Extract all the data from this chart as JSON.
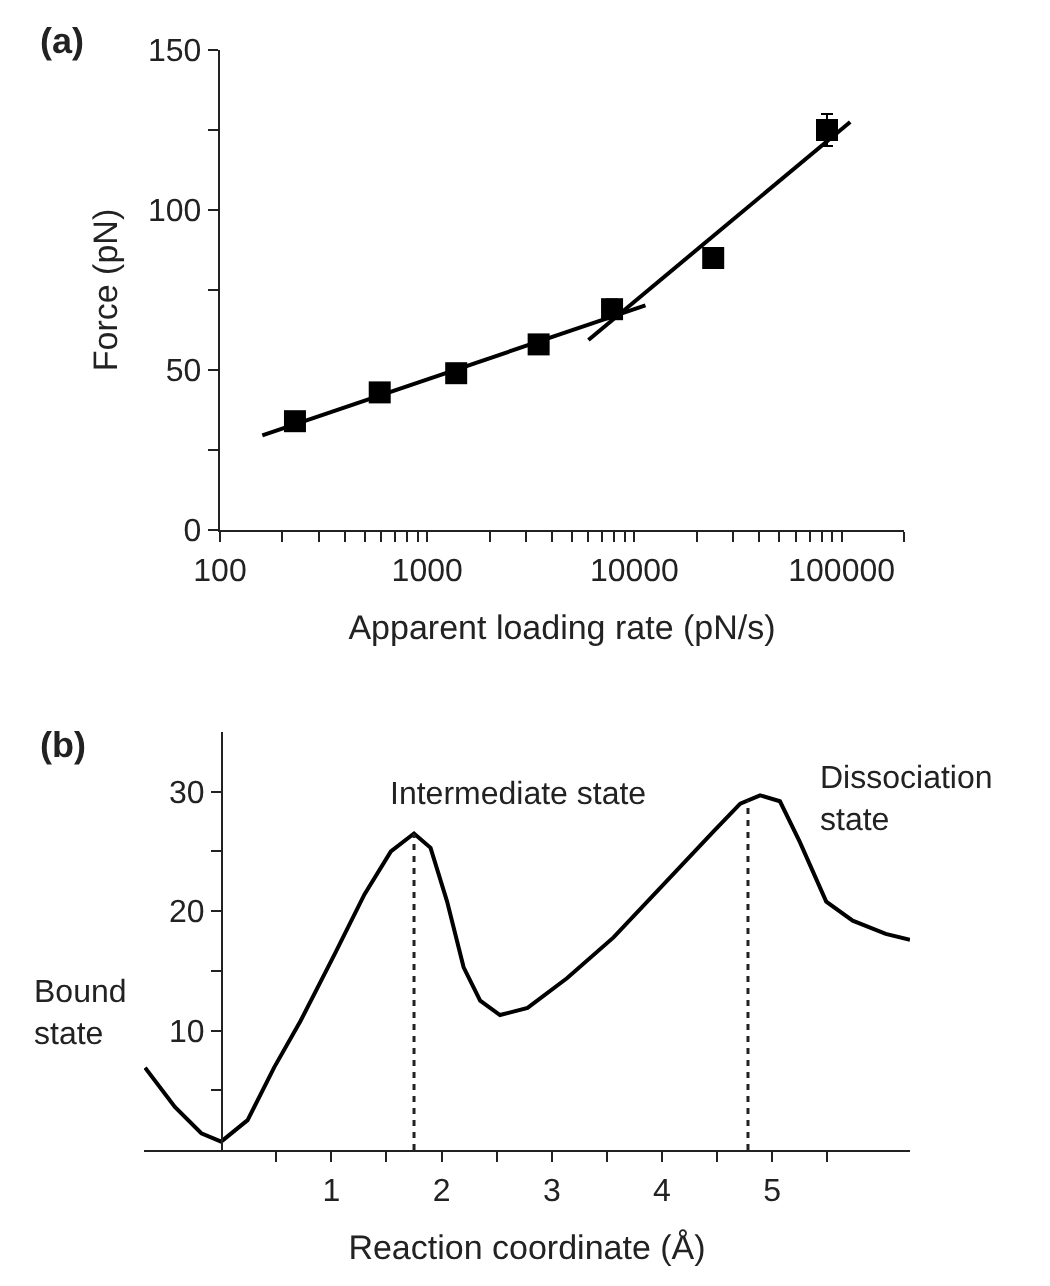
{
  "chart_data": [
    {
      "type": "scatter",
      "title": "(a)",
      "xlabel": "Apparent loading rate (pN/s)",
      "ylabel": "Force (pN)",
      "log": "x",
      "x": [
        230,
        590,
        1380,
        3450,
        7800,
        24000,
        85000
      ],
      "series": [
        {
          "color": "#000000",
          "marker": "square",
          "values": [
            34,
            43,
            49,
            58,
            69,
            85,
            125
          ],
          "errors": [
            null,
            null,
            null,
            null,
            3,
            null,
            5
          ]
        },
        {
          "type": "line",
          "marker": "none",
          "color": "#000000",
          "x": [
            160,
            11300
          ],
          "values": [
            29.6,
            70.2
          ]
        },
        {
          "type": "line",
          "marker": "none",
          "color": "#000000",
          "x": [
            6000,
            110000
          ],
          "values": [
            59.4,
            127.5
          ]
        }
      ],
      "xlim": [
        100,
        200000
      ],
      "ylim": [
        0,
        150
      ],
      "xticks": [
        100,
        {
          "value": 200,
          "label": null
        },
        {
          "value": 300,
          "label": null
        },
        {
          "value": 400,
          "label": null
        },
        {
          "value": 500,
          "label": null
        },
        {
          "value": 600,
          "label": null
        },
        {
          "value": 700,
          "label": null
        },
        {
          "value": 800,
          "label": null
        },
        {
          "value": 900,
          "label": null
        },
        1000,
        {
          "value": 2000,
          "label": null
        },
        {
          "value": 3000,
          "label": null
        },
        {
          "value": 4000,
          "label": null
        },
        {
          "value": 5000,
          "label": null
        },
        {
          "value": 6000,
          "label": null
        },
        {
          "value": 7000,
          "label": null
        },
        {
          "value": 8000,
          "label": null
        },
        {
          "value": 9000,
          "label": null
        },
        10000,
        {
          "value": 20000,
          "label": null
        },
        {
          "value": 30000,
          "label": null
        },
        {
          "value": 40000,
          "label": null
        },
        {
          "value": 50000,
          "label": null
        },
        {
          "value": 60000,
          "label": null
        },
        {
          "value": 70000,
          "label": null
        },
        {
          "value": 80000,
          "label": null
        },
        {
          "value": 90000,
          "label": null
        },
        100000,
        {
          "value": 200000,
          "label": null
        }
      ],
      "yticks": [
        0,
        {
          "value": 25,
          "label": null
        },
        50,
        {
          "value": 75,
          "label": null
        },
        100,
        {
          "value": 125,
          "label": null
        },
        150
      ]
    },
    {
      "type": "line",
      "title": "(b)",
      "xlabel": "Reaction coordinate (Å)",
      "marker": "none",
      "x": [
        -0.69,
        -0.42,
        -0.18,
        0,
        0.24,
        0.48,
        0.72,
        1.03,
        1.3,
        1.54,
        1.75,
        1.9,
        2.05,
        2.2,
        2.35,
        2.53,
        2.78,
        3.14,
        3.56,
        4.04,
        4.47,
        4.71,
        4.89,
        5.07,
        5.25,
        5.49,
        5.73,
        6.03,
        6.25
      ],
      "values": [
        6.9,
        3.6,
        1.4,
        0.7,
        2.5,
        6.9,
        10.8,
        16.4,
        21.4,
        25,
        26.5,
        25.3,
        20.8,
        15.3,
        12.5,
        11.3,
        11.9,
        14.4,
        17.8,
        22.5,
        26.7,
        29,
        29.7,
        29.2,
        25.8,
        20.8,
        19.2,
        18.1,
        17.6
      ],
      "color": "#000000",
      "ref_lines": [
        {
          "axis": "x",
          "value": 1.75,
          "line_style": "dotted"
        },
        {
          "axis": "x",
          "value": 4.78,
          "line_style": "dotted"
        }
      ],
      "annotations": [
        "Bound state",
        {
          "text": "Intermediate state",
          "x": 1.75,
          "y": 26.5
        },
        {
          "text": "Dissociation state",
          "x": 4.89,
          "y": 29.7
        }
      ],
      "xlim": [
        -0.7,
        6.25
      ],
      "ylim": [
        0,
        35
      ],
      "xticks": [
        {
          "value": 0.5,
          "label": null
        },
        1,
        {
          "value": 1.5,
          "label": null
        },
        2,
        {
          "value": 2.5,
          "label": null
        },
        3,
        {
          "value": 3.5,
          "label": null
        },
        4,
        {
          "value": 4.5,
          "label": null
        },
        5,
        {
          "value": 5.5,
          "label": null
        }
      ],
      "yticks": [
        {
          "value": 5,
          "label": null
        },
        10,
        {
          "value": 15,
          "label": null
        },
        20,
        {
          "value": 25,
          "label": null
        },
        30
      ]
    }
  ]
}
